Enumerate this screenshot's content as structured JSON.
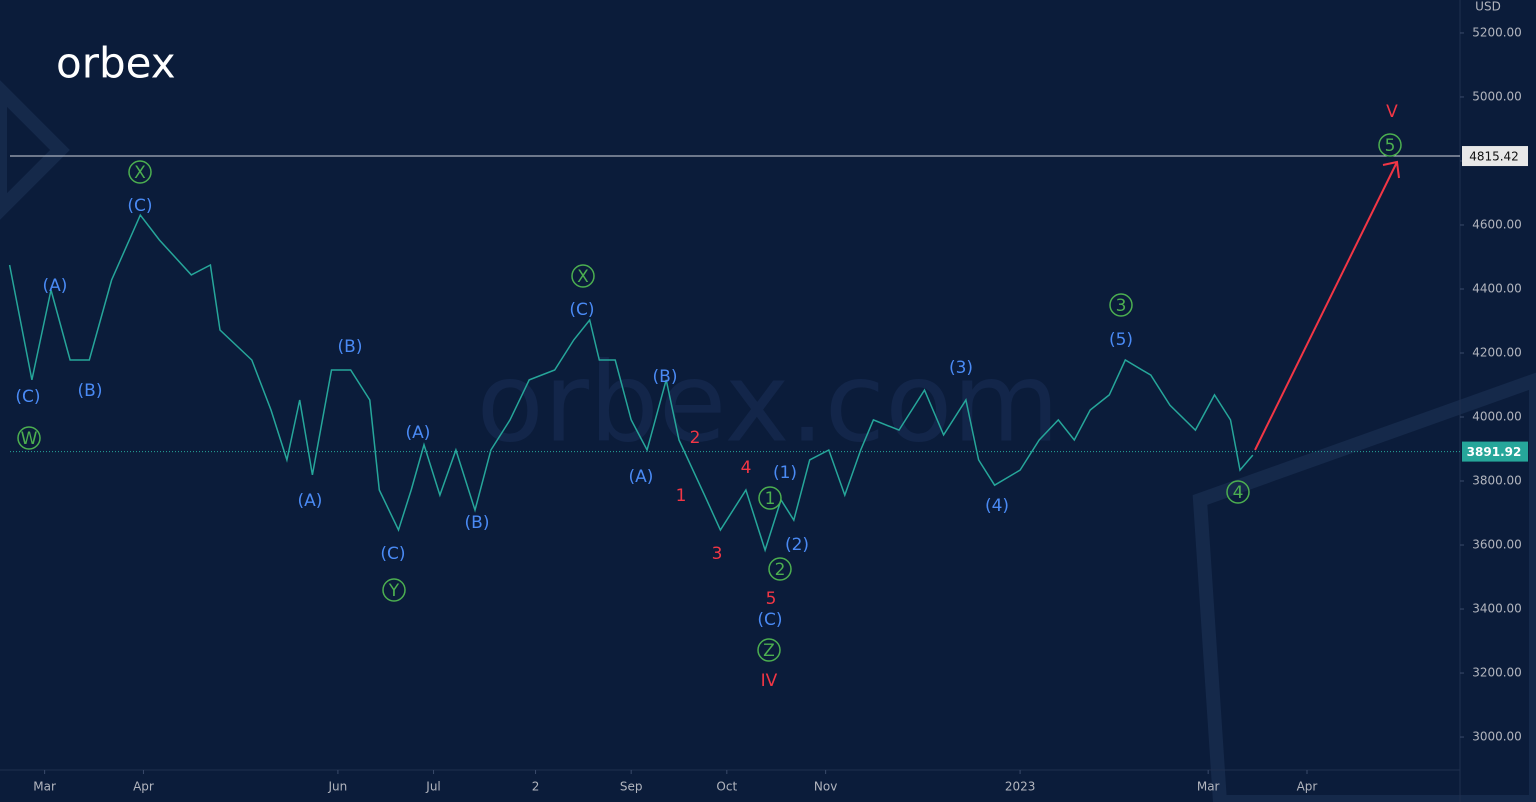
{
  "chart_data": {
    "type": "line",
    "brand": "orbex",
    "watermark": "orbex.com",
    "currency": "USD",
    "x": [
      -11,
      -4,
      2,
      8,
      14,
      21,
      30,
      36,
      46,
      52,
      55,
      65,
      71,
      76,
      80,
      84,
      90,
      96,
      102,
      105,
      111,
      115,
      119,
      124,
      129,
      135,
      140,
      146,
      152,
      160,
      166,
      171,
      174,
      179,
      184,
      189,
      195,
      199,
      207,
      212,
      220,
      226,
      231,
      235,
      240,
      246,
      251,
      256,
      260,
      268,
      276,
      282,
      289,
      293,
      298,
      306,
      312,
      318,
      323,
      328,
      334,
      339,
      347,
      353,
      361,
      367,
      372,
      375,
      379
    ],
    "series": [
      {
        "color": "#26a69a",
        "values": [
          4475,
          4116,
          4397,
          4178,
          4178,
          4428,
          4631,
          4553,
          4444,
          4475,
          4272,
          4178,
          4022,
          3866,
          4053,
          3819,
          4147,
          4147,
          4053,
          3772,
          3647,
          3772,
          3913,
          3756,
          3897,
          3709,
          3897,
          3991,
          4116,
          4147,
          4241,
          4303,
          4178,
          4178,
          3991,
          3897,
          4116,
          3928,
          3756,
          3647,
          3772,
          3584,
          3741,
          3678,
          3866,
          3897,
          3756,
          3897,
          3991,
          3959,
          4084,
          3944,
          4053,
          3866,
          3787,
          3834,
          3928,
          3991,
          3928,
          4022,
          4069,
          4178,
          4131,
          4037,
          3959,
          4069,
          3991,
          3834,
          3881
        ]
      }
    ],
    "xlim": [
      -14,
      444
    ],
    "xticks": [
      {
        "value": 0,
        "label": "Mar"
      },
      {
        "value": 31,
        "label": "Apr"
      },
      {
        "value": 92,
        "label": "Jun"
      },
      {
        "value": 122,
        "label": "Jul"
      },
      {
        "value": 154,
        "label": "2"
      },
      {
        "value": 184,
        "label": "Sep"
      },
      {
        "value": 214,
        "label": "Oct"
      },
      {
        "value": 245,
        "label": "Nov"
      },
      {
        "value": 306,
        "label": "2023"
      },
      {
        "value": 365,
        "label": "Mar"
      },
      {
        "value": 396,
        "label": "Apr"
      }
    ],
    "ylim": [
      2897,
      5303
    ],
    "yticks": [
      {
        "value": 3000,
        "label": "3000.00"
      },
      {
        "value": 3200,
        "label": "3200.00"
      },
      {
        "value": 3400,
        "label": "3400.00"
      },
      {
        "value": 3600,
        "label": "3600.00"
      },
      {
        "value": 3800,
        "label": "3800.00"
      },
      {
        "value": 4000,
        "label": "4000.00"
      },
      {
        "value": 4200,
        "label": "4200.00"
      },
      {
        "value": 4400,
        "label": "4400.00"
      },
      {
        "value": 4600,
        "label": "4600.00"
      },
      {
        "value": 4800,
        "label": "4800.00"
      },
      {
        "value": 5000,
        "label": "5000.00"
      },
      {
        "value": 5200,
        "label": "5200.00"
      }
    ],
    "target_level": 4815.42,
    "last_price": 3891.92,
    "annotations": [
      {
        "text": "(C)",
        "color": "#4a8af4"
      },
      {
        "text": "(A)",
        "color": "#4a8af4"
      },
      {
        "text": "(B)",
        "color": "#4a8af4"
      },
      {
        "text": "(C)",
        "color": "#4a8af4"
      },
      {
        "text": "(A)",
        "color": "#4a8af4"
      },
      {
        "text": "(B)",
        "color": "#4a8af4"
      },
      {
        "text": "(C)",
        "color": "#4a8af4"
      },
      {
        "text": "(A)",
        "color": "#4a8af4"
      },
      {
        "text": "(B)",
        "color": "#4a8af4"
      },
      {
        "text": "(C)",
        "color": "#4a8af4"
      },
      {
        "text": "(B)",
        "color": "#4a8af4"
      },
      {
        "text": "(A)",
        "color": "#4a8af4"
      },
      {
        "text": "(1)",
        "color": "#4a8af4"
      },
      {
        "text": "(2)",
        "color": "#4a8af4"
      },
      {
        "text": "(C)",
        "color": "#4a8af4"
      },
      {
        "text": "(3)",
        "color": "#4a8af4"
      },
      {
        "text": "(4)",
        "color": "#4a8af4"
      },
      {
        "text": "(5)",
        "color": "#4a8af4"
      },
      {
        "text": "W",
        "color": "#4caf50",
        "circled": true
      },
      {
        "text": "X",
        "color": "#4caf50",
        "circled": true
      },
      {
        "text": "Y",
        "color": "#4caf50",
        "circled": true
      },
      {
        "text": "X",
        "color": "#4caf50",
        "circled": true
      },
      {
        "text": "1",
        "color": "#4caf50",
        "circled": true
      },
      {
        "text": "2",
        "color": "#4caf50",
        "circled": true
      },
      {
        "text": "Z",
        "color": "#4caf50",
        "circled": true
      },
      {
        "text": "3",
        "color": "#4caf50",
        "circled": true
      },
      {
        "text": "4",
        "color": "#4caf50",
        "circled": true
      },
      {
        "text": "5",
        "color": "#4caf50",
        "circled": true
      },
      {
        "text": "1",
        "color": "#f23645"
      },
      {
        "text": "2",
        "color": "#f23645"
      },
      {
        "text": "3",
        "color": "#f23645"
      },
      {
        "text": "4",
        "color": "#f23645"
      },
      {
        "text": "5",
        "color": "#f23645"
      },
      {
        "text": "IV",
        "color": "#f23645"
      },
      {
        "text": "V",
        "color": "#f23645"
      }
    ]
  }
}
